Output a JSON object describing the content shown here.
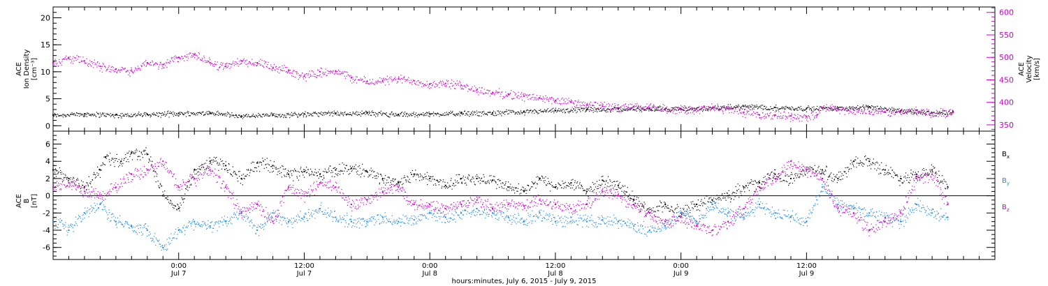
{
  "chart_data": [
    {
      "type": "scatter",
      "panel": "top",
      "y_label_lines": [
        "ACE",
        "Ion Density",
        "[cm⁻³]"
      ],
      "y2_label_lines": [
        "ACE",
        "Velocity",
        "[km/s]"
      ],
      "ylim": [
        -1,
        22
      ],
      "y2lim": [
        336,
        612
      ],
      "yticks": [
        0,
        5,
        10,
        15,
        20
      ],
      "y2ticks": [
        350,
        400,
        450,
        500,
        550,
        600
      ],
      "series": [
        {
          "name": "",
          "axis": "left",
          "color": "#000000",
          "points": [
            [
              0,
              2
            ],
            [
              6,
              2.2
            ],
            [
              12,
              2
            ],
            [
              18,
              2.1
            ],
            [
              24,
              2.3
            ],
            [
              30,
              2.4
            ],
            [
              36,
              1.8
            ],
            [
              42,
              2
            ],
            [
              48,
              2.2
            ],
            [
              54,
              2.3
            ],
            [
              60,
              2.4
            ],
            [
              66,
              2.1
            ],
            [
              72,
              2.2
            ],
            [
              78,
              2.3
            ],
            [
              84,
              2.4
            ],
            [
              90,
              2.6
            ],
            [
              96,
              2.8
            ],
            [
              102,
              3
            ],
            [
              108,
              3.1
            ],
            [
              114,
              3.2
            ],
            [
              120,
              3.1
            ],
            [
              126,
              3.3
            ],
            [
              132,
              3.6
            ],
            [
              138,
              3.4
            ],
            [
              144,
              3.2
            ],
            [
              150,
              3.3
            ],
            [
              156,
              3.5
            ],
            [
              162,
              2.8
            ],
            [
              168,
              2.4
            ],
            [
              172,
              2.6
            ]
          ]
        },
        {
          "name": "",
          "axis": "right",
          "color": "#cc00cc",
          "points": [
            [
              0,
              488
            ],
            [
              3,
              498
            ],
            [
              6,
              492
            ],
            [
              9,
              480
            ],
            [
              12,
              474
            ],
            [
              15,
              470
            ],
            [
              18,
              488
            ],
            [
              21,
              484
            ],
            [
              24,
              500
            ],
            [
              27,
              506
            ],
            [
              30,
              488
            ],
            [
              33,
              480
            ],
            [
              36,
              492
            ],
            [
              39,
              488
            ],
            [
              42,
              476
            ],
            [
              45,
              470
            ],
            [
              48,
              458
            ],
            [
              51,
              468
            ],
            [
              54,
              470
            ],
            [
              57,
              455
            ],
            [
              60,
              446
            ],
            [
              63,
              448
            ],
            [
              66,
              452
            ],
            [
              69,
              448
            ],
            [
              72,
              440
            ],
            [
              75,
              442
            ],
            [
              78,
              438
            ],
            [
              81,
              428
            ],
            [
              84,
              422
            ],
            [
              87,
              418
            ],
            [
              90,
              414
            ],
            [
              93,
              410
            ],
            [
              96,
              404
            ],
            [
              99,
              400
            ],
            [
              102,
              394
            ],
            [
              105,
              392
            ],
            [
              108,
              388
            ],
            [
              111,
              390
            ],
            [
              114,
              388
            ],
            [
              117,
              386
            ],
            [
              120,
              384
            ],
            [
              123,
              385
            ],
            [
              126,
              388
            ],
            [
              129,
              386
            ],
            [
              132,
              378
            ],
            [
              135,
              372
            ],
            [
              138,
              372
            ],
            [
              141,
              370
            ],
            [
              144,
              368
            ],
            [
              146,
              372
            ],
            [
              147,
              388
            ],
            [
              150,
              385
            ],
            [
              153,
              383
            ],
            [
              156,
              380
            ],
            [
              159,
              378
            ],
            [
              162,
              380
            ],
            [
              165,
              382
            ],
            [
              168,
              376
            ],
            [
              172,
              378
            ]
          ]
        }
      ]
    },
    {
      "type": "scatter",
      "panel": "bottom",
      "y_label_lines": [
        "ACE",
        "B",
        "[nT]"
      ],
      "ylim": [
        -7.4,
        7.5
      ],
      "yticks": [
        -6,
        -4,
        -2,
        0,
        2,
        4,
        6
      ],
      "zero_line": true,
      "legend": [
        {
          "label": "B",
          "sub": "x",
          "color": "#000000"
        },
        {
          "label": "B",
          "sub": "y",
          "color": "#1e88e5"
        },
        {
          "label": "B",
          "sub": "z",
          "color": "#cc00cc"
        }
      ],
      "series": [
        {
          "name": "B",
          "sub": "x",
          "color": "#000000",
          "points": [
            [
              0,
              3
            ],
            [
              3,
              2
            ],
            [
              6,
              1
            ],
            [
              9,
              3
            ],
            [
              10,
              4.5
            ],
            [
              13,
              4
            ],
            [
              15,
              5
            ],
            [
              18,
              4.8
            ],
            [
              21,
              0
            ],
            [
              24,
              -1.5
            ],
            [
              27,
              3
            ],
            [
              30,
              4
            ],
            [
              33,
              3.5
            ],
            [
              36,
              2
            ],
            [
              39,
              3.8
            ],
            [
              42,
              3.5
            ],
            [
              45,
              2.5
            ],
            [
              48,
              2.8
            ],
            [
              51,
              2.5
            ],
            [
              54,
              3
            ],
            [
              57,
              3.2
            ],
            [
              60,
              2.8
            ],
            [
              63,
              2
            ],
            [
              66,
              1.5
            ],
            [
              69,
              2.5
            ],
            [
              72,
              2
            ],
            [
              75,
              1.2
            ],
            [
              78,
              2
            ],
            [
              81,
              2
            ],
            [
              84,
              1.8
            ],
            [
              87,
              1
            ],
            [
              90,
              0.5
            ],
            [
              93,
              2
            ],
            [
              96,
              1
            ],
            [
              99,
              1.5
            ],
            [
              102,
              0.5
            ],
            [
              105,
              1.8
            ],
            [
              108,
              1.2
            ],
            [
              111,
              -0.5
            ],
            [
              114,
              -2
            ],
            [
              117,
              -1
            ],
            [
              120,
              -2
            ],
            [
              123,
              -1
            ],
            [
              126,
              -0.5
            ],
            [
              129,
              0
            ],
            [
              132,
              1
            ],
            [
              135,
              1.5
            ],
            [
              138,
              2.5
            ],
            [
              141,
              2
            ],
            [
              144,
              3
            ],
            [
              147,
              3
            ],
            [
              150,
              2
            ],
            [
              153,
              4
            ],
            [
              156,
              4
            ],
            [
              159,
              3
            ],
            [
              162,
              2
            ],
            [
              165,
              2.5
            ],
            [
              168,
              3
            ],
            [
              171,
              1
            ]
          ]
        },
        {
          "name": "B",
          "sub": "y",
          "color": "#1e88e5",
          "points": [
            [
              0,
              -3
            ],
            [
              3,
              -4
            ],
            [
              6,
              -2
            ],
            [
              9,
              -1
            ],
            [
              12,
              -3
            ],
            [
              15,
              -3.5
            ],
            [
              18,
              -4
            ],
            [
              21,
              -6
            ],
            [
              24,
              -4
            ],
            [
              27,
              -3
            ],
            [
              30,
              -3.5
            ],
            [
              33,
              -3
            ],
            [
              36,
              -2
            ],
            [
              39,
              -4
            ],
            [
              42,
              -2
            ],
            [
              45,
              -3
            ],
            [
              48,
              -2.5
            ],
            [
              51,
              -1.5
            ],
            [
              54,
              -2.5
            ],
            [
              57,
              -3
            ],
            [
              60,
              -3
            ],
            [
              63,
              -2.5
            ],
            [
              66,
              -3
            ],
            [
              69,
              -2.8
            ],
            [
              72,
              -2
            ],
            [
              75,
              -2.5
            ],
            [
              78,
              -2
            ],
            [
              81,
              -1.5
            ],
            [
              84,
              -2
            ],
            [
              87,
              -2.5
            ],
            [
              90,
              -3
            ],
            [
              93,
              -2
            ],
            [
              96,
              -3
            ],
            [
              99,
              -2.5
            ],
            [
              102,
              -3
            ],
            [
              105,
              -2.8
            ],
            [
              108,
              -3
            ],
            [
              111,
              -3.5
            ],
            [
              114,
              -4
            ],
            [
              117,
              -3.5
            ],
            [
              120,
              -2
            ],
            [
              123,
              -3
            ],
            [
              126,
              -1
            ],
            [
              129,
              -2
            ],
            [
              132,
              -2.5
            ],
            [
              135,
              -1
            ],
            [
              138,
              -2
            ],
            [
              141,
              -2.5
            ],
            [
              144,
              -3
            ],
            [
              147,
              1
            ],
            [
              150,
              -1
            ],
            [
              153,
              -1.5
            ],
            [
              156,
              -2
            ],
            [
              159,
              -2.5
            ],
            [
              162,
              -3
            ],
            [
              165,
              -1
            ],
            [
              168,
              -2
            ],
            [
              171,
              -2.5
            ]
          ]
        },
        {
          "name": "B",
          "sub": "z",
          "color": "#cc00cc",
          "points": [
            [
              0,
              1
            ],
            [
              3,
              1.5
            ],
            [
              6,
              0.5
            ],
            [
              9,
              0
            ],
            [
              12,
              1
            ],
            [
              15,
              2.5
            ],
            [
              18,
              3
            ],
            [
              21,
              4
            ],
            [
              24,
              1
            ],
            [
              27,
              2
            ],
            [
              30,
              3
            ],
            [
              33,
              1
            ],
            [
              36,
              -2
            ],
            [
              39,
              -1
            ],
            [
              42,
              -3
            ],
            [
              45,
              1
            ],
            [
              48,
              0
            ],
            [
              51,
              1.5
            ],
            [
              54,
              1
            ],
            [
              57,
              -1
            ],
            [
              60,
              -0.5
            ],
            [
              63,
              0.5
            ],
            [
              66,
              1
            ],
            [
              69,
              -1
            ],
            [
              72,
              -1
            ],
            [
              75,
              -1.5
            ],
            [
              78,
              -1
            ],
            [
              81,
              -0.5
            ],
            [
              84,
              -1.5
            ],
            [
              87,
              -1
            ],
            [
              90,
              -1.2
            ],
            [
              93,
              -0.5
            ],
            [
              96,
              -1
            ],
            [
              99,
              -1.5
            ],
            [
              102,
              -1
            ],
            [
              105,
              0.5
            ],
            [
              108,
              0
            ],
            [
              111,
              -1
            ],
            [
              114,
              -2
            ],
            [
              117,
              -3
            ],
            [
              120,
              -2.5
            ],
            [
              123,
              -3.5
            ],
            [
              126,
              -4
            ],
            [
              129,
              -3
            ],
            [
              132,
              -1.5
            ],
            [
              135,
              1
            ],
            [
              138,
              2
            ],
            [
              141,
              4
            ],
            [
              144,
              3
            ],
            [
              147,
              2
            ],
            [
              150,
              -1.5
            ],
            [
              153,
              -2
            ],
            [
              156,
              -4
            ],
            [
              159,
              -3
            ],
            [
              162,
              -2
            ],
            [
              165,
              2
            ],
            [
              168,
              2.5
            ],
            [
              171,
              -1
            ]
          ]
        }
      ]
    }
  ],
  "x_axis": {
    "xlim": [
      0,
      180
    ],
    "major_ticks": [
      {
        "x": 24,
        "time": "0:00",
        "date": "Jul 7"
      },
      {
        "x": 48,
        "time": "12:00",
        "date": "Jul 7"
      },
      {
        "x": 72,
        "time": "0:00",
        "date": "Jul 8"
      },
      {
        "x": 96,
        "time": "12:00",
        "date": "Jul 8"
      },
      {
        "x": 120,
        "time": "0:00",
        "date": "Jul 9"
      },
      {
        "x": 144,
        "time": "12:00",
        "date": "Jul 9"
      }
    ],
    "title": "hours:minutes, July  6, 2015 - July  9, 2015"
  }
}
